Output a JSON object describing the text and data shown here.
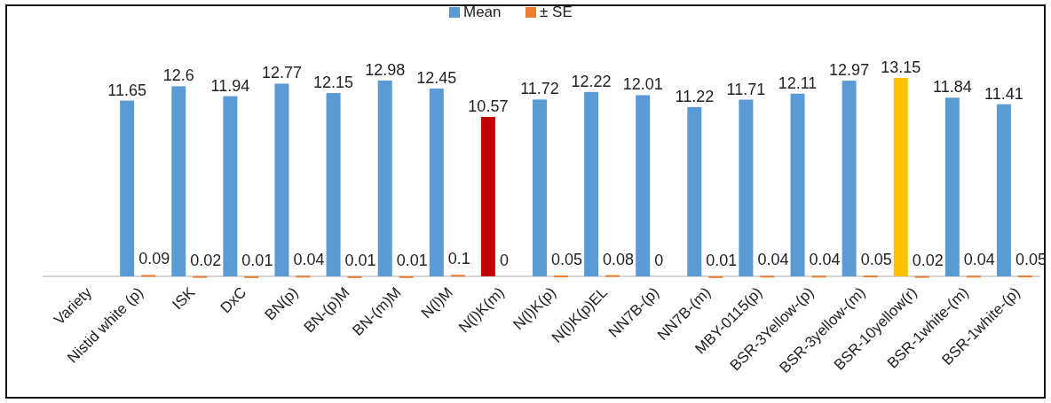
{
  "chart_data": {
    "type": "bar",
    "categories": [
      "Variety",
      "Nistid white (p)",
      "ISK",
      "DxC",
      "BN(p)",
      "BN-(p)M",
      "BN-(m)M",
      "N(l)M",
      "N(l)K(m)",
      "N(l)K(p)",
      "N(l)K(p)EL",
      "NN7B-(p)",
      "NN7B-(m)",
      "MBY-0115(p)",
      "BSR-3Yellow-(p)",
      "BSR-3yellow-(m)",
      "BSR-10yellow(r)",
      "BSR-1white-(m)",
      "BSR-1white-(p)"
    ],
    "series": [
      {
        "name": "Mean",
        "color": "#5b9bd5",
        "colors": [
          null,
          "#5b9bd5",
          "#5b9bd5",
          "#5b9bd5",
          "#5b9bd5",
          "#5b9bd5",
          "#5b9bd5",
          "#5b9bd5",
          "#c00000",
          "#5b9bd5",
          "#5b9bd5",
          "#5b9bd5",
          "#5b9bd5",
          "#5b9bd5",
          "#5b9bd5",
          "#5b9bd5",
          "#ffc000",
          "#5b9bd5",
          "#5b9bd5"
        ],
        "values": [
          null,
          11.65,
          12.6,
          11.94,
          12.77,
          12.15,
          12.98,
          12.45,
          10.57,
          11.72,
          12.22,
          12.01,
          11.22,
          11.71,
          12.11,
          12.97,
          13.15,
          11.84,
          11.41
        ]
      },
      {
        "name": "± SE",
        "color": "#ed7d31",
        "values": [
          null,
          0.09,
          0.02,
          0.01,
          0.04,
          0.01,
          0.01,
          0.1,
          0,
          0.05,
          0.08,
          0,
          0.01,
          0.04,
          0.04,
          0.05,
          0.02,
          0.04,
          0.05
        ]
      }
    ],
    "data_labels": true,
    "legend": "top"
  }
}
